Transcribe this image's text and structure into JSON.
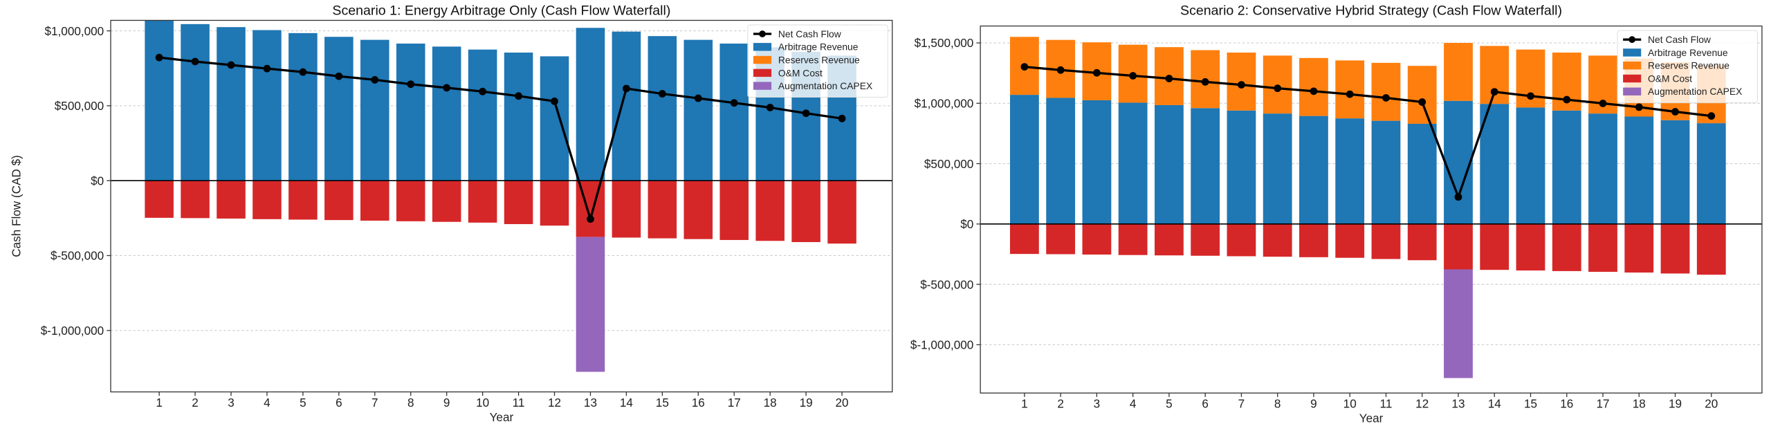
{
  "chart_data": [
    {
      "type": "bar",
      "title": "Scenario 1: Energy Arbitrage Only (Cash Flow Waterfall)",
      "xlabel": "Year",
      "ylabel": "Cash Flow (CAD $)",
      "categories": [
        1,
        2,
        3,
        4,
        5,
        6,
        7,
        8,
        9,
        10,
        11,
        12,
        13,
        14,
        15,
        16,
        17,
        18,
        19,
        20
      ],
      "xlim": [
        -0.35,
        21.4
      ],
      "ylim": [
        -1410000,
        1070000
      ],
      "yticks": [
        1000000,
        500000,
        0,
        -500000,
        -1000000
      ],
      "ytick_labels": [
        "$1,000,000",
        "$500,000",
        "$0",
        "$-500,000",
        "$-1,000,000"
      ],
      "grid": "y, dotted",
      "legend_placement": "upper right",
      "series": [
        {
          "name": "Arbitrage Revenue",
          "kind": "bar",
          "color": "#1f77b4",
          "values": [
            1070000,
            1045000,
            1025000,
            1005000,
            985000,
            960000,
            940000,
            915000,
            895000,
            875000,
            855000,
            830000,
            1020000,
            995000,
            965000,
            940000,
            915000,
            890000,
            860000,
            835000
          ]
        },
        {
          "name": "Reserves Revenue",
          "kind": "bar",
          "color": "#ff7f0e",
          "values": [
            0,
            0,
            0,
            0,
            0,
            0,
            0,
            0,
            0,
            0,
            0,
            0,
            0,
            0,
            0,
            0,
            0,
            0,
            0,
            0
          ]
        },
        {
          "name": "O&M Cost",
          "kind": "bar",
          "color": "#d62728",
          "values": [
            -248000,
            -250000,
            -253000,
            -257000,
            -260000,
            -263000,
            -267000,
            -271000,
            -275000,
            -280000,
            -290000,
            -300000,
            -376000,
            -380000,
            -385000,
            -390000,
            -396000,
            -402000,
            -410000,
            -420000
          ]
        },
        {
          "name": "Augmentation CAPEX",
          "kind": "bar",
          "color": "#9467bd",
          "values": [
            0,
            0,
            0,
            0,
            0,
            0,
            0,
            0,
            0,
            0,
            0,
            0,
            -900000,
            0,
            0,
            0,
            0,
            0,
            0,
            0
          ]
        },
        {
          "name": "Net Cash Flow",
          "kind": "line",
          "color": "#000000",
          "values": [
            822000,
            795000,
            772000,
            748000,
            725000,
            697000,
            673000,
            644000,
            620000,
            595000,
            565000,
            530000,
            -256000,
            615000,
            580000,
            550000,
            519000,
            488000,
            450000,
            415000
          ]
        }
      ]
    },
    {
      "type": "bar",
      "title": "Scenario 2: Conservative Hybrid Strategy (Cash Flow Waterfall)",
      "xlabel": "Year",
      "ylabel": "",
      "categories": [
        1,
        2,
        3,
        4,
        5,
        6,
        7,
        8,
        9,
        10,
        11,
        12,
        13,
        14,
        15,
        16,
        17,
        18,
        19,
        20
      ],
      "xlim": [
        -0.22,
        21.4
      ],
      "ylim": [
        -1400000,
        1640000
      ],
      "yticks": [
        1500000,
        1000000,
        500000,
        0,
        -500000,
        -1000000
      ],
      "ytick_labels": [
        "$1,500,000",
        "$1,000,000",
        "$500,000",
        "$0",
        "$-500,000",
        "$-1,000,000"
      ],
      "grid": "y, dotted",
      "legend_placement": "upper right",
      "series": [
        {
          "name": "Arbitrage Revenue",
          "kind": "bar",
          "color": "#1f77b4",
          "values": [
            1070000,
            1045000,
            1025000,
            1005000,
            985000,
            960000,
            940000,
            915000,
            895000,
            875000,
            855000,
            830000,
            1020000,
            995000,
            965000,
            940000,
            915000,
            890000,
            860000,
            835000
          ]
        },
        {
          "name": "Reserves Revenue",
          "kind": "bar",
          "color": "#ff7f0e",
          "values": [
            480000,
            480000,
            480000,
            480000,
            480000,
            480000,
            480000,
            480000,
            480000,
            480000,
            480000,
            480000,
            480000,
            480000,
            480000,
            480000,
            480000,
            480000,
            480000,
            480000
          ]
        },
        {
          "name": "O&M Cost",
          "kind": "bar",
          "color": "#d62728",
          "values": [
            -248000,
            -250000,
            -253000,
            -257000,
            -260000,
            -263000,
            -267000,
            -271000,
            -275000,
            -280000,
            -290000,
            -300000,
            -376000,
            -380000,
            -385000,
            -390000,
            -396000,
            -402000,
            -410000,
            -420000
          ]
        },
        {
          "name": "Augmentation CAPEX",
          "kind": "bar",
          "color": "#9467bd",
          "values": [
            0,
            0,
            0,
            0,
            0,
            0,
            0,
            0,
            0,
            0,
            0,
            0,
            -900000,
            0,
            0,
            0,
            0,
            0,
            0,
            0
          ]
        },
        {
          "name": "Net Cash Flow",
          "kind": "line",
          "color": "#000000",
          "values": [
            1302000,
            1275000,
            1252000,
            1228000,
            1205000,
            1177000,
            1153000,
            1124000,
            1100000,
            1075000,
            1045000,
            1010000,
            224000,
            1095000,
            1060000,
            1030000,
            999000,
            968000,
            930000,
            895000
          ]
        }
      ]
    }
  ]
}
